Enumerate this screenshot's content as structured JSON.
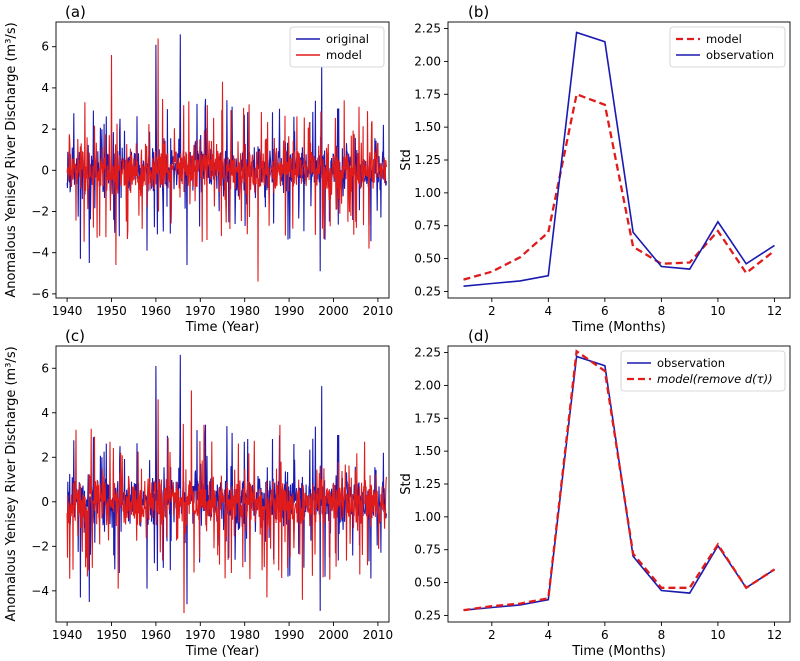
{
  "chart_data": [
    {
      "panel": "(a)",
      "type": "line",
      "xlabel": "Time (Year)",
      "ylabel": "Anomalous Yenisey River Discharge (m³/s)",
      "xlim": [
        1937.5,
        2012.5
      ],
      "ylim": [
        -6.2,
        7.2
      ],
      "xticks": [
        1940,
        1950,
        1960,
        1970,
        1980,
        1990,
        2000,
        2010
      ],
      "yticks": [
        -6,
        -4,
        -2,
        0,
        2,
        4,
        6
      ],
      "legend": "top-right",
      "series": [
        {
          "name": "original",
          "color": "#1a1ab0",
          "seed": 7,
          "peaks": [
            [
              1965.5,
              6.6
            ],
            [
              1960,
              6.1
            ],
            [
              1943,
              -4.3
            ],
            [
              1967,
              -4.6
            ],
            [
              1997,
              -4.9
            ],
            [
              1945,
              -4.5
            ],
            [
              1997.3,
              5.2
            ],
            [
              1958,
              -3.9
            ]
          ]
        },
        {
          "name": "model",
          "color": "#e01b1b",
          "seed": 19,
          "peaks": [
            [
              1960.5,
              6.4
            ],
            [
              1950,
              5.6
            ],
            [
              1983,
              -5.4
            ],
            [
              1951,
              -4.6
            ],
            [
              2008,
              -3.8
            ],
            [
              1975,
              4.3
            ],
            [
              1944,
              3.3
            ],
            [
              1981,
              3.2
            ]
          ]
        }
      ]
    },
    {
      "panel": "(b)",
      "type": "line",
      "xlabel": "Time (Months)",
      "ylabel": "Std",
      "xlim": [
        0.45,
        12.55
      ],
      "ylim": [
        0.2,
        2.3
      ],
      "xticks": [
        2,
        4,
        6,
        8,
        10,
        12
      ],
      "yticks": [
        0.25,
        0.5,
        0.75,
        1.0,
        1.25,
        1.5,
        1.75,
        2.0,
        2.25
      ],
      "ytick_labels": [
        "0.25",
        "0.50",
        "0.75",
        "1.00",
        "1.25",
        "1.50",
        "1.75",
        "2.00",
        "2.25"
      ],
      "legend": "top-right",
      "x": [
        1,
        2,
        3,
        4,
        5,
        6,
        7,
        8,
        9,
        10,
        11,
        12
      ],
      "series": [
        {
          "name": "model",
          "color": "#e01b1b",
          "dashed": true,
          "values": [
            0.34,
            0.4,
            0.51,
            0.7,
            1.75,
            1.67,
            0.59,
            0.46,
            0.47,
            0.71,
            0.39,
            0.56
          ]
        },
        {
          "name": "observation",
          "color": "#1a1ab0",
          "dashed": false,
          "values": [
            0.29,
            0.31,
            0.33,
            0.37,
            2.22,
            2.15,
            0.7,
            0.44,
            0.42,
            0.78,
            0.46,
            0.6
          ]
        }
      ]
    },
    {
      "panel": "(c)",
      "type": "line",
      "xlabel": "Time (Year)",
      "ylabel": "Anomalous Yenisey River Discharge (m³/s)",
      "xlim": [
        1937.5,
        2012.5
      ],
      "ylim": [
        -5.4,
        7.0
      ],
      "xticks": [
        1940,
        1950,
        1960,
        1970,
        1980,
        1990,
        2000,
        2010
      ],
      "yticks": [
        -4,
        -2,
        0,
        2,
        4,
        6
      ],
      "legend": "none",
      "series": [
        {
          "name": "original",
          "color": "#1a1ab0",
          "seed": 7,
          "peaks": [
            [
              1965.5,
              6.6
            ],
            [
              1960,
              6.1
            ],
            [
              1943,
              -4.3
            ],
            [
              1967,
              -4.6
            ],
            [
              1997,
              -4.9
            ],
            [
              1945,
              -4.5
            ],
            [
              1997.3,
              5.2
            ],
            [
              1958,
              -3.9
            ]
          ]
        },
        {
          "name": "model",
          "color": "#e01b1b",
          "seed": 31,
          "peaks": [
            [
              1966.3,
              -5.0
            ],
            [
              1968,
              5.0
            ],
            [
              1993,
              -4.4
            ],
            [
              1985,
              -4.3
            ],
            [
              1960.5,
              4.6
            ],
            [
              1951.5,
              -3.9
            ],
            [
              2007,
              2.7
            ],
            [
              1977,
              -3.2
            ]
          ]
        }
      ]
    },
    {
      "panel": "(d)",
      "type": "line",
      "xlabel": "Time (Months)",
      "ylabel": "Std",
      "xlim": [
        0.45,
        12.55
      ],
      "ylim": [
        0.2,
        2.3
      ],
      "xticks": [
        2,
        4,
        6,
        8,
        10,
        12
      ],
      "yticks": [
        0.25,
        0.5,
        0.75,
        1.0,
        1.25,
        1.5,
        1.75,
        2.0,
        2.25
      ],
      "ytick_labels": [
        "0.25",
        "0.50",
        "0.75",
        "1.00",
        "1.25",
        "1.50",
        "1.75",
        "2.00",
        "2.25"
      ],
      "legend": "top-right",
      "x": [
        1,
        2,
        3,
        4,
        5,
        6,
        7,
        8,
        9,
        10,
        11,
        12
      ],
      "series": [
        {
          "name": "observation",
          "color": "#1a1ab0",
          "dashed": false,
          "values": [
            0.29,
            0.31,
            0.33,
            0.37,
            2.22,
            2.15,
            0.7,
            0.44,
            0.42,
            0.78,
            0.46,
            0.6
          ]
        },
        {
          "name": "model(remove d(τ))",
          "color": "#e01b1b",
          "dashed": true,
          "values": [
            0.29,
            0.32,
            0.34,
            0.38,
            2.26,
            2.11,
            0.72,
            0.46,
            0.46,
            0.79,
            0.46,
            0.6
          ]
        }
      ]
    }
  ]
}
